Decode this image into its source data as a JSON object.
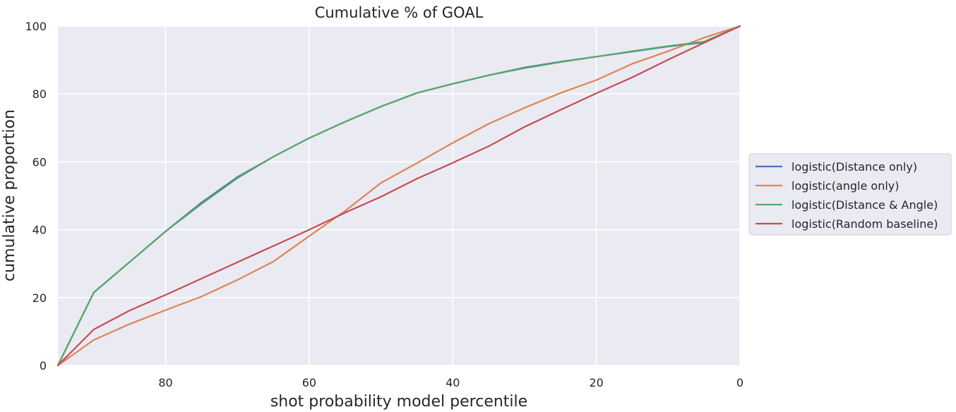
{
  "chart_data": {
    "type": "line",
    "title": "Cumulative % of GOAL",
    "xlabel": "shot probability model percentile",
    "ylabel": "cumulative proportion",
    "xlim": [
      95,
      0
    ],
    "ylim": [
      0,
      100
    ],
    "x_reversed": true,
    "xticks": [
      80,
      60,
      40,
      20,
      0
    ],
    "yticks": [
      0,
      20,
      40,
      60,
      80,
      100
    ],
    "grid": true,
    "background": "#eaeaf2",
    "legend_position": "right",
    "series": [
      {
        "name": "logistic(Distance only)",
        "color": "#4c72b0",
        "x": [
          95,
          90,
          85,
          80,
          75,
          70,
          65,
          60,
          55,
          50,
          45,
          40,
          35,
          30,
          25,
          20,
          15,
          10,
          5,
          0
        ],
        "y": [
          0,
          21.5,
          30.5,
          39.5,
          48,
          55.5,
          61.5,
          67,
          71.8,
          76.3,
          80.3,
          83,
          85.5,
          87.8,
          89.5,
          91,
          92.5,
          94,
          95.2,
          100
        ]
      },
      {
        "name": "logistic(angle only)",
        "color": "#dd8452",
        "x": [
          95,
          90,
          85,
          80,
          75,
          70,
          65,
          60,
          55,
          50,
          45,
          40,
          35,
          30,
          25,
          20,
          15,
          10,
          5,
          0
        ],
        "y": [
          0,
          7.5,
          12.2,
          16.3,
          20.3,
          25.2,
          30.6,
          38.1,
          45.5,
          53.8,
          59.6,
          65.6,
          71.2,
          75.9,
          80.3,
          84.1,
          88.9,
          92.6,
          96.6,
          100
        ]
      },
      {
        "name": "logistic(Distance & Angle)",
        "color": "#55a868",
        "x": [
          95,
          90,
          85,
          80,
          75,
          70,
          65,
          60,
          55,
          50,
          45,
          40,
          35,
          30,
          25,
          20,
          15,
          10,
          5,
          0
        ],
        "y": [
          0,
          21.5,
          30.5,
          39.5,
          47.6,
          55.2,
          61.5,
          67,
          71.8,
          76.3,
          80.3,
          83,
          85.5,
          87.6,
          89.4,
          91,
          92.6,
          94.1,
          95.4,
          100
        ]
      },
      {
        "name": "logistic(Random baseline)",
        "color": "#c44e52",
        "x": [
          95,
          90,
          85,
          80,
          75,
          70,
          65,
          60,
          55,
          50,
          45,
          40,
          35,
          30,
          25,
          20,
          15,
          10,
          5,
          0
        ],
        "y": [
          0,
          10.6,
          16.2,
          20.8,
          25.6,
          30.4,
          35.2,
          40,
          45,
          49.7,
          55,
          59.7,
          64.6,
          70.3,
          75.3,
          80.2,
          84.9,
          90.1,
          95.1,
          100
        ]
      }
    ]
  }
}
